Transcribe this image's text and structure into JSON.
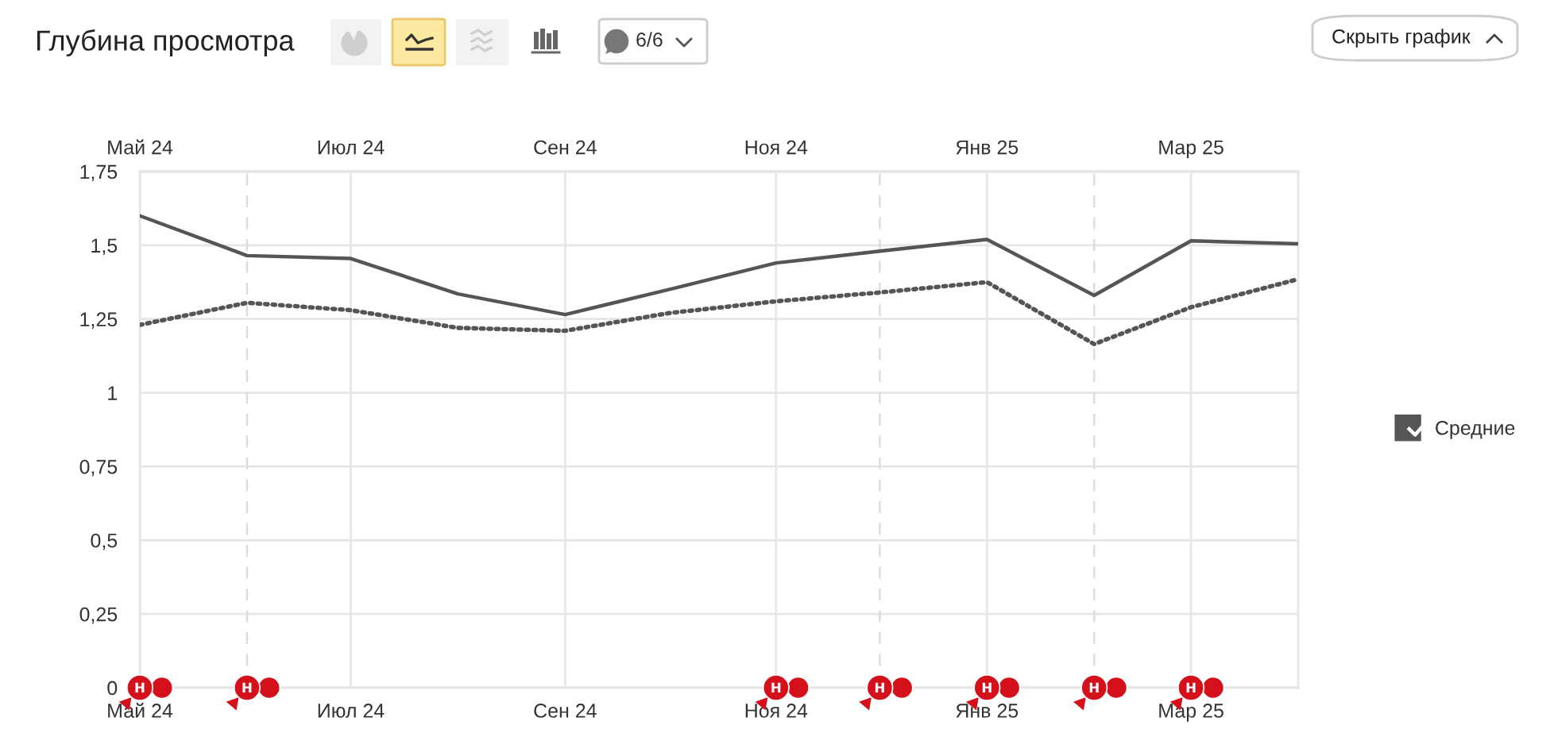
{
  "chart_data": {
    "type": "line",
    "title": "Глубина просмотра",
    "x": [
      "2024-05",
      "2024-06",
      "2024-07",
      "2024-08",
      "2024-09",
      "2024-10",
      "2024-11",
      "2024-12",
      "2025-01",
      "2025-02",
      "2025-03",
      "2025-04"
    ],
    "series": [
      {
        "name": "Средние",
        "color": "#555555",
        "values": [
          1.6,
          1.465,
          1.455,
          1.335,
          1.265,
          1.35,
          1.44,
          1.48,
          1.52,
          1.33,
          1.515,
          1.505
        ]
      },
      {
        "color": "#555555",
        "line_style": "dotted",
        "values": [
          1.23,
          1.305,
          1.28,
          1.22,
          1.21,
          1.27,
          1.31,
          1.34,
          1.375,
          1.165,
          1.29,
          1.385
        ]
      }
    ],
    "xlim": [
      "2024-05",
      "2025-04"
    ],
    "xticks": [
      {
        "value": "2024-05",
        "label": "Май 24"
      },
      {
        "value": "2024-07",
        "label": "Июл 24"
      },
      {
        "value": "2024-09",
        "label": "Сен 24"
      },
      {
        "value": "2024-11",
        "label": "Ноя 24"
      },
      {
        "value": "2025-01",
        "label": "Янв 25"
      },
      {
        "value": "2025-03",
        "label": "Мар 25"
      }
    ],
    "x2lim": [
      "2024-05",
      "2025-04"
    ],
    "x2ticks": [
      {
        "value": "2024-05",
        "label": "Май 24"
      },
      {
        "value": "2024-07",
        "label": "Июл 24"
      },
      {
        "value": "2024-09",
        "label": "Сен 24"
      },
      {
        "value": "2024-11",
        "label": "Ноя 24"
      },
      {
        "value": "2025-01",
        "label": "Янв 25"
      },
      {
        "value": "2025-03",
        "label": "Мар 25"
      }
    ],
    "ylim": [
      0,
      1.75
    ],
    "yticks": [
      0,
      {
        "value": 0.25,
        "label": "0,25"
      },
      {
        "value": 0.5,
        "label": "0,5"
      },
      {
        "value": 0.75,
        "label": "0,75"
      },
      1,
      {
        "value": 1.25,
        "label": "1,25"
      },
      {
        "value": 1.5,
        "label": "1,5"
      },
      {
        "value": 1.75,
        "label": "1,75"
      }
    ],
    "grid": true,
    "legend": "right",
    "line_style": "solid",
    "ref_lines": [
      {
        "axis": "x",
        "value": "2024-06",
        "line_style": "dashed",
        "color": "#dddddd"
      },
      {
        "axis": "x",
        "value": "2024-12",
        "line_style": "dashed",
        "color": "#dddddd"
      },
      {
        "axis": "x",
        "value": "2025-02",
        "line_style": "dashed",
        "color": "#dddddd"
      }
    ],
    "annotations": [
      "6/6",
      "Скрыть график",
      {
        "text": "н",
        "x": "2024-05",
        "y": 0
      },
      {
        "text": "н",
        "x": "2024-06",
        "y": 0
      },
      {
        "text": "н",
        "x": "2024-11",
        "y": 0
      },
      {
        "text": "н",
        "x": "2024-12",
        "y": 0
      },
      {
        "text": "н",
        "x": "2025-01",
        "y": 0
      },
      {
        "text": "н",
        "x": "2025-02",
        "y": 0
      },
      {
        "text": "н",
        "x": "2025-03",
        "y": 0
      }
    ]
  }
}
